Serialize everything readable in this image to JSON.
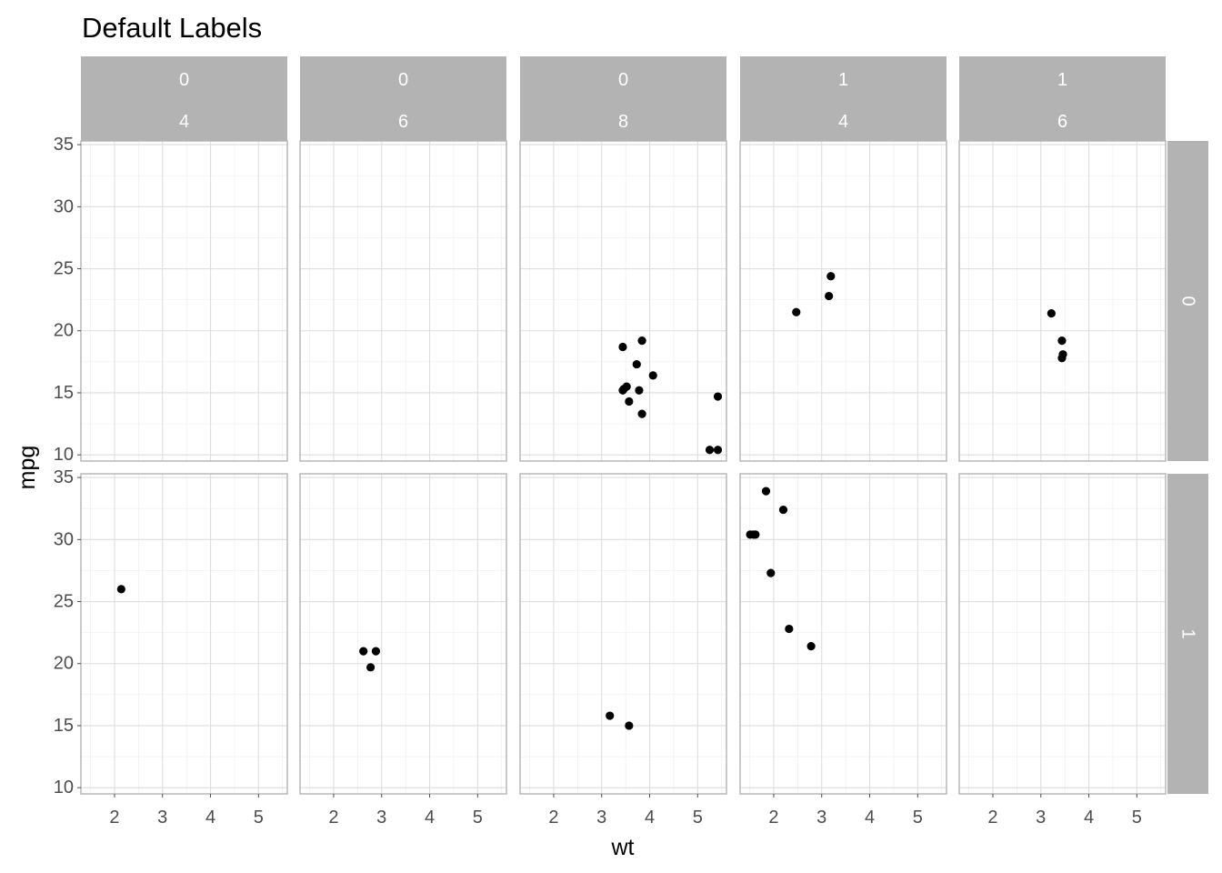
{
  "chart_data": {
    "type": "scatter",
    "title": "Default Labels",
    "xlabel": "wt",
    "ylabel": "mpg",
    "xlim": [
      1.3,
      5.6
    ],
    "ylim": [
      9.5,
      35.3
    ],
    "x_ticks": [
      2,
      3,
      4,
      5
    ],
    "y_ticks": [
      10,
      15,
      20,
      25,
      30,
      35
    ],
    "x_minor": [
      1.5,
      2.5,
      3.5,
      4.5,
      5.5
    ],
    "y_minor": [
      12.5,
      17.5,
      22.5,
      27.5,
      32.5
    ],
    "grid": true,
    "column_strips": [
      [
        "0",
        "4"
      ],
      [
        "0",
        "6"
      ],
      [
        "0",
        "8"
      ],
      [
        "1",
        "4"
      ],
      [
        "1",
        "6"
      ]
    ],
    "row_strips": [
      "0",
      "1"
    ],
    "point_color": "#000000",
    "strip_color": "#b3b3b3",
    "panels": [
      {
        "row": 0,
        "col": 0,
        "points": []
      },
      {
        "row": 0,
        "col": 1,
        "points": []
      },
      {
        "row": 0,
        "col": 2,
        "points": [
          [
            3.44,
            18.7
          ],
          [
            3.84,
            19.2
          ],
          [
            3.73,
            17.3
          ],
          [
            4.07,
            16.4
          ],
          [
            3.44,
            15.2
          ],
          [
            3.52,
            15.5
          ],
          [
            3.57,
            14.3
          ],
          [
            3.84,
            13.3
          ],
          [
            3.78,
            15.2
          ],
          [
            3.46,
            15.3
          ],
          [
            5.42,
            14.7
          ],
          [
            5.25,
            10.4
          ],
          [
            5.42,
            10.4
          ]
        ]
      },
      {
        "row": 0,
        "col": 3,
        "points": [
          [
            2.47,
            21.5
          ],
          [
            3.19,
            24.4
          ],
          [
            3.15,
            22.8
          ]
        ]
      },
      {
        "row": 0,
        "col": 4,
        "points": [
          [
            3.22,
            21.4
          ],
          [
            3.44,
            19.2
          ],
          [
            3.46,
            18.1
          ],
          [
            3.44,
            17.8
          ]
        ]
      },
      {
        "row": 1,
        "col": 0,
        "points": [
          [
            2.14,
            26.0
          ]
        ]
      },
      {
        "row": 1,
        "col": 1,
        "points": [
          [
            2.62,
            21.0
          ],
          [
            2.88,
            21.0
          ],
          [
            2.77,
            19.7
          ]
        ]
      },
      {
        "row": 1,
        "col": 2,
        "points": [
          [
            3.17,
            15.8
          ],
          [
            3.57,
            15.0
          ]
        ]
      },
      {
        "row": 1,
        "col": 3,
        "points": [
          [
            2.2,
            32.4
          ],
          [
            1.62,
            30.4
          ],
          [
            1.84,
            33.9
          ],
          [
            1.51,
            30.4
          ],
          [
            1.94,
            27.3
          ],
          [
            2.32,
            22.8
          ],
          [
            2.78,
            21.4
          ],
          [
            1.58,
            30.4
          ]
        ]
      },
      {
        "row": 1,
        "col": 4,
        "points": []
      }
    ]
  }
}
